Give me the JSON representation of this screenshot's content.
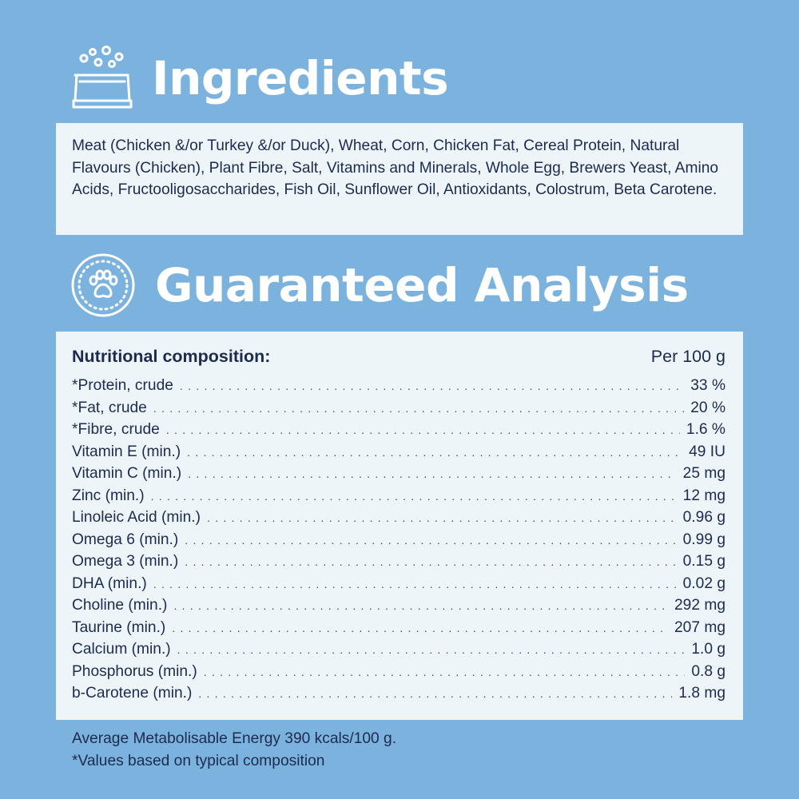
{
  "ingredients": {
    "title": "Ingredients",
    "icon": "food-bowl-icon",
    "text": "Meat (Chicken &/or Turkey &/or Duck), Wheat, Corn, Chicken Fat, Cereal Protein, Natural Flavours (Chicken), Plant Fibre, Salt, Vitamins and Minerals, Whole Egg, Brewers Yeast, Amino Acids, Fructooligosaccharides, Fish Oil, Sunflower Oil, Antioxidants, Colostrum, Beta Carotene."
  },
  "analysis": {
    "title": "Guaranteed Analysis",
    "icon": "paw-print-icon",
    "table_title": "Nutritional composition:",
    "unit_label": "Per 100 g",
    "rows": [
      {
        "name": "*Protein, crude",
        "value": "33 %"
      },
      {
        "name": "*Fat, crude",
        "value": "20 %"
      },
      {
        "name": "*Fibre, crude",
        "value": "1.6 %"
      },
      {
        "name": "Vitamin E (min.)",
        "value": "49 IU"
      },
      {
        "name": "Vitamin C (min.)",
        "value": "25 mg"
      },
      {
        "name": "Zinc (min.)",
        "value": "12 mg"
      },
      {
        "name": "Linoleic Acid (min.)",
        "value": "0.96 g"
      },
      {
        "name": "Omega 6 (min.)",
        "value": "0.99 g"
      },
      {
        "name": "Omega 3 (min.)",
        "value": "0.15 g"
      },
      {
        "name": "DHA (min.)",
        "value": "0.02 g"
      },
      {
        "name": "Choline (min.)",
        "value": "292 mg"
      },
      {
        "name": "Taurine (min.)",
        "value": "207 mg"
      },
      {
        "name": "Calcium (min.)",
        "value": "1.0 g"
      },
      {
        "name": "Phosphorus (min.)",
        "value": "0.8 g"
      },
      {
        "name": "b-Carotene (min.)",
        "value": "1.8 mg"
      }
    ]
  },
  "footer": {
    "energy": "Average Metabolisable Energy 390 kcals/100 g.",
    "note": "*Values based on typical composition"
  },
  "colors": {
    "background": "#7cb3de",
    "panel": "#eef5f8",
    "text": "#1d2a4f",
    "heading": "#ffffff"
  }
}
